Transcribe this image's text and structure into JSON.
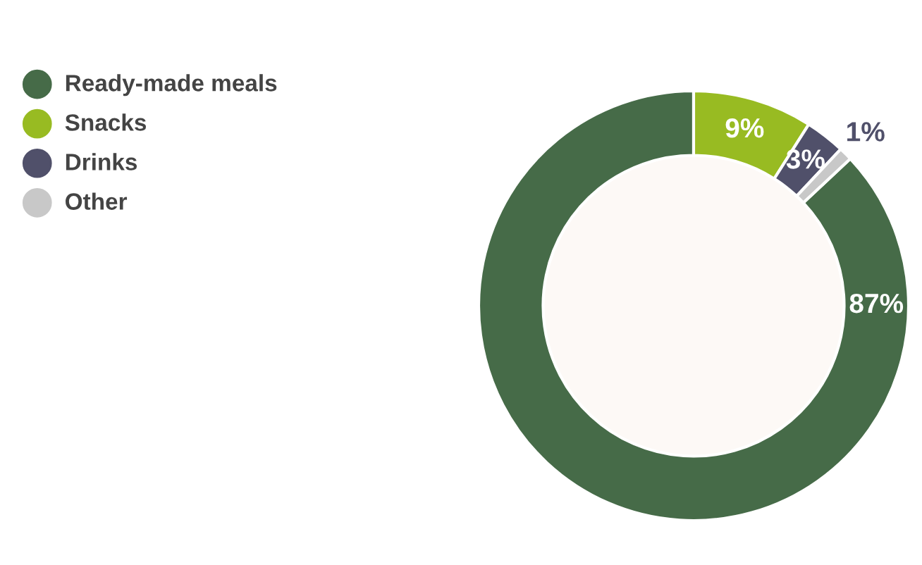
{
  "chart_data": {
    "type": "donut",
    "categories": [
      "Ready-made meals",
      "Snacks",
      "Drinks",
      "Other"
    ],
    "values": [
      87,
      9,
      3,
      1
    ],
    "colors": [
      "#466b48",
      "#98bb22",
      "#50506a",
      "#c8c8c8"
    ],
    "value_labels": [
      "87%",
      "9%",
      "3%",
      "1%"
    ],
    "legend": "top left"
  }
}
